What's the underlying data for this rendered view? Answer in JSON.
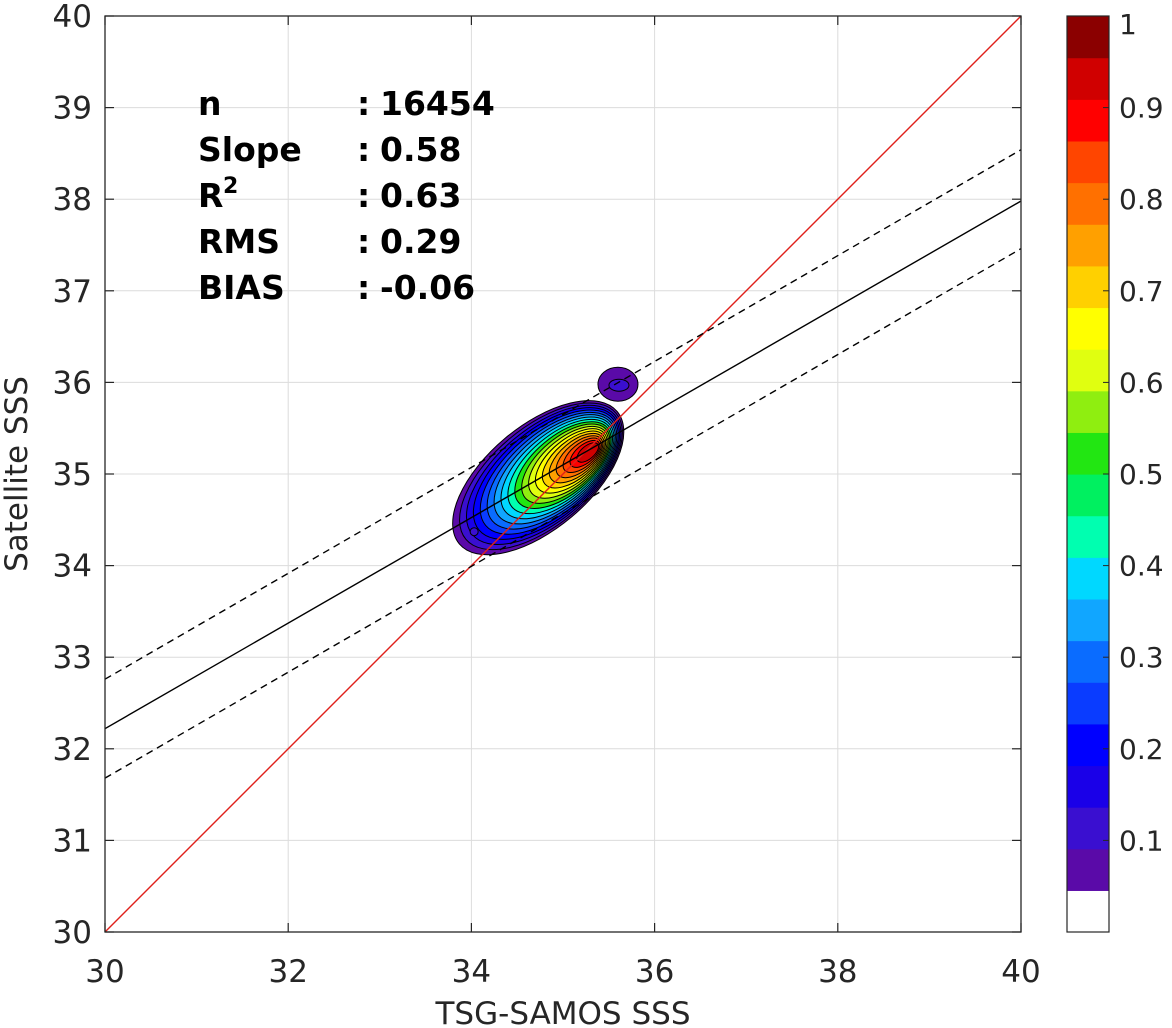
{
  "chart_data": {
    "type": "scatter",
    "subtype": "density-contour",
    "xlabel": "TSG-SAMOS SSS",
    "ylabel": "Satellite SSS",
    "xlim": [
      30,
      40
    ],
    "ylim": [
      30,
      40
    ],
    "x_ticks": [
      "30",
      "32",
      "34",
      "36",
      "38",
      "40"
    ],
    "y_ticks": [
      "30",
      "31",
      "32",
      "33",
      "34",
      "35",
      "36",
      "37",
      "38",
      "39",
      "40"
    ],
    "grid": true,
    "stats": [
      {
        "key": "n",
        "sep": ":",
        "value": "16454"
      },
      {
        "key": "Slope",
        "sep": ":",
        "value": "0.58"
      },
      {
        "key": "R",
        "sup": "2",
        "sep": ":",
        "value": "0.63"
      },
      {
        "key": "RMS",
        "sep": ":",
        "value": "0.29"
      },
      {
        "key": "BIAS",
        "sep": ":",
        "value": "-0.06"
      }
    ],
    "lines": [
      {
        "role": "one-to-one",
        "color": "#e0201b",
        "dash": "solid",
        "points": [
          [
            30,
            30
          ],
          [
            40,
            40
          ]
        ]
      },
      {
        "role": "regression",
        "color": "#000000",
        "dash": "solid",
        "points": [
          [
            30,
            32.22
          ],
          [
            40,
            37.98
          ]
        ]
      },
      {
        "role": "upper-bound",
        "color": "#000000",
        "dash": "dashed",
        "points": [
          [
            30,
            32.76
          ],
          [
            40,
            38.54
          ]
        ]
      },
      {
        "role": "lower-bound",
        "color": "#000000",
        "dash": "dashed",
        "points": [
          [
            30,
            31.68
          ],
          [
            40,
            37.46
          ]
        ]
      }
    ],
    "density_peak": {
      "x": 35.3,
      "y": 35.25,
      "value": 1.0
    },
    "density_levels": [
      0.05,
      0.1,
      0.15,
      0.2,
      0.25,
      0.3,
      0.35,
      0.4,
      0.45,
      0.5,
      0.55,
      0.6,
      0.65,
      0.7,
      0.75,
      0.8,
      0.85,
      0.9,
      0.95
    ],
    "colorbar": {
      "range": [
        0,
        1
      ],
      "ticks": [
        "0.1",
        "0.2",
        "0.3",
        "0.4",
        "0.5",
        "0.6",
        "0.7",
        "0.8",
        "0.9",
        "1"
      ],
      "colors": [
        "#ffffff",
        "#5a0aa8",
        "#3a0fd0",
        "#1a00e8",
        "#0000ff",
        "#0a3cff",
        "#0a6cff",
        "#11a6ff",
        "#00d8ff",
        "#00ffb0",
        "#00f060",
        "#22e612",
        "#8fee10",
        "#e0ff10",
        "#ffff00",
        "#ffd000",
        "#ffa000",
        "#ff7000",
        "#ff4500",
        "#ff0000",
        "#d00000",
        "#8b0000"
      ]
    }
  }
}
